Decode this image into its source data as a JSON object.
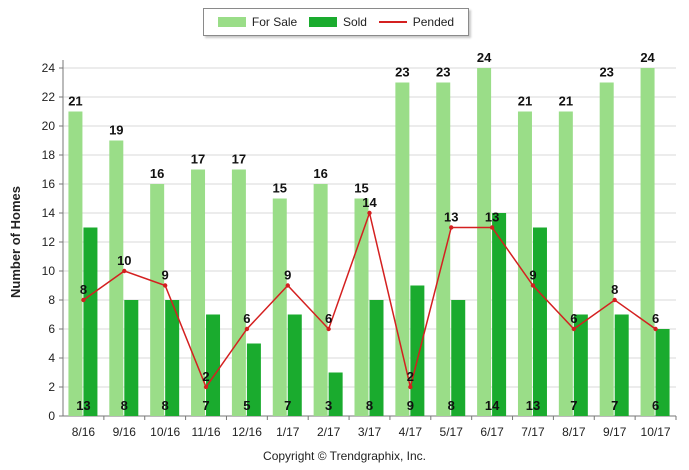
{
  "chart_data": {
    "type": "bar",
    "categories": [
      "8/16",
      "9/16",
      "10/16",
      "11/16",
      "12/16",
      "1/17",
      "2/17",
      "3/17",
      "4/17",
      "5/17",
      "6/17",
      "7/17",
      "8/17",
      "9/17",
      "10/17"
    ],
    "series": [
      {
        "name": "For Sale",
        "type": "bar",
        "color": "#9add88",
        "values": [
          21,
          19,
          16,
          17,
          17,
          15,
          16,
          15,
          23,
          23,
          24,
          21,
          21,
          23,
          24
        ]
      },
      {
        "name": "Sold",
        "type": "bar",
        "color": "#1aab2e",
        "values": [
          13,
          8,
          8,
          7,
          5,
          7,
          3,
          8,
          9,
          8,
          14,
          13,
          7,
          7,
          6
        ]
      },
      {
        "name": "Pended",
        "type": "line",
        "color": "#d42020",
        "values": [
          8,
          10,
          9,
          2,
          6,
          9,
          6,
          14,
          2,
          13,
          13,
          9,
          6,
          8,
          6
        ]
      }
    ],
    "ylabel": "Number of Homes",
    "xlabel": "",
    "ylim": [
      0,
      24
    ],
    "yticks": [
      0,
      2,
      4,
      6,
      8,
      10,
      12,
      14,
      16,
      18,
      20,
      22,
      24
    ],
    "grid": true,
    "legend_position": "top-center"
  },
  "footer": {
    "copyright": "Copyright © Trendgraphix, Inc."
  }
}
